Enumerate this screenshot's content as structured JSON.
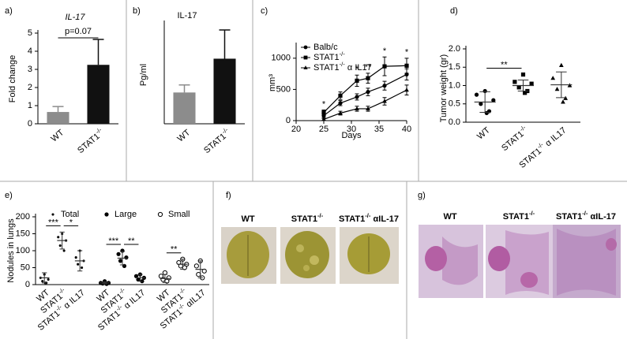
{
  "chart_data": [
    {
      "panel_label": "a)",
      "type": "bar",
      "title": "IL-17",
      "title_style": "italic",
      "y_label": "Fold change",
      "categories": [
        "WT",
        "STAT1-/-"
      ],
      "values": [
        0.65,
        3.25
      ],
      "errors": [
        0.3,
        1.4
      ],
      "colors": [
        "#8c8c8c",
        "#111111"
      ],
      "ylim": [
        0,
        5
      ],
      "yticks": [
        0,
        1,
        2,
        3,
        4,
        5
      ],
      "annotation": "p=0.07"
    },
    {
      "panel_label": "b)",
      "type": "bar",
      "title": "IL-17",
      "title_style": "normal",
      "y_label": "Pg/ml",
      "categories": [
        "WT",
        "STAT1-/-"
      ],
      "values": [
        2500,
        5200
      ],
      "errors": [
        600,
        2300
      ],
      "colors": [
        "#8c8c8c",
        "#111111"
      ],
      "ylim": [
        0,
        8000
      ]
    },
    {
      "panel_label": "c)",
      "type": "line",
      "y_label": "mm³",
      "x_label": "Days",
      "x": [
        25,
        28,
        31,
        33,
        36,
        40
      ],
      "xlim": [
        20,
        40
      ],
      "xticks": [
        20,
        25,
        30,
        35,
        40
      ],
      "ylim": [
        0,
        1200
      ],
      "yticks": [
        0,
        500,
        1000
      ],
      "series": [
        {
          "name": "Balb/c",
          "marker": "circle",
          "color": "#000000",
          "values": [
            80,
            280,
            380,
            460,
            560,
            740
          ],
          "errors": [
            30,
            40,
            50,
            60,
            70,
            90
          ]
        },
        {
          "name": "STAT1-/-",
          "marker": "square",
          "color": "#000000",
          "values": [
            130,
            400,
            640,
            680,
            870,
            880
          ],
          "errors": [
            40,
            60,
            90,
            80,
            150,
            120
          ]
        },
        {
          "name": "STAT1-/- α IL17",
          "marker": "triangle",
          "color": "#000000",
          "values": [
            20,
            120,
            190,
            190,
            310,
            490
          ],
          "errors": [
            15,
            30,
            40,
            40,
            60,
            80
          ]
        }
      ],
      "significance": [
        {
          "day": 25,
          "label": "*"
        },
        {
          "day": 31,
          "label": "*"
        },
        {
          "day": 33,
          "label": "**"
        },
        {
          "day": 36,
          "label": "*"
        },
        {
          "day": 40,
          "label": "*"
        }
      ]
    },
    {
      "panel_label": "d)",
      "type": "dot",
      "y_label": "Tumor weight (gr)",
      "categories": [
        "WT",
        "STAT1-/-",
        "STAT1-/- α IL17"
      ],
      "markers": [
        "circle",
        "square",
        "triangle"
      ],
      "points": [
        [
          0.85,
          0.75,
          0.6,
          0.5,
          0.3,
          0.25
        ],
        [
          1.3,
          1.1,
          1.05,
          0.95,
          0.85,
          0.8
        ],
        [
          1.55,
          1.2,
          1.0,
          0.9,
          0.65,
          0.55
        ]
      ],
      "means": [
        0.55,
        1.0,
        1.02
      ],
      "sds": [
        0.28,
        0.15,
        0.35
      ],
      "ylim": [
        0,
        2
      ],
      "yticks": [
        {
          "value": 0,
          "label": "0.0"
        },
        0.5,
        {
          "value": 1,
          "label": "1.0"
        },
        1.5,
        {
          "value": 2,
          "label": "2.0"
        }
      ],
      "significance": [
        {
          "label": "**",
          "between": [
            "WT",
            "STAT1-/-"
          ]
        }
      ]
    },
    {
      "panel_label": "e)",
      "type": "dot",
      "y_label": "Nodules in lungs",
      "ylim": [
        0,
        200
      ],
      "yticks": [
        0,
        50,
        100,
        150,
        200
      ],
      "series": [
        {
          "name": "Total",
          "marker": "small",
          "categories": [
            "WT",
            "STAT1-/-",
            "STAT1-/- α IL17"
          ],
          "points": [
            [
              30,
              20,
              15,
              10,
              5,
              5
            ],
            [
              150,
              140,
              130,
              115,
              100
            ],
            [
              100,
              80,
              70,
              60,
              50
            ]
          ],
          "means": [
            20,
            130,
            70
          ],
          "sds": [
            15,
            25,
            30
          ],
          "significance": [
            {
              "label": "***",
              "between": [
                "WT",
                "STAT1-/-"
              ]
            },
            {
              "label": "*",
              "between": [
                "STAT1-/-",
                "STAT1-/- α IL17"
              ]
            }
          ]
        },
        {
          "name": "Large",
          "marker": "circle",
          "categories": [
            "WT",
            "STAT1-/-",
            "STAT1-/- α IL17"
          ],
          "points": [
            [
              10,
              5,
              5,
              3,
              2
            ],
            [
              100,
              90,
              80,
              70,
              55
            ],
            [
              30,
              25,
              20,
              15,
              10
            ]
          ],
          "means": [
            5,
            78,
            20
          ],
          "sds": [
            3,
            20,
            10
          ],
          "significance": [
            {
              "label": "***",
              "between": [
                "WT",
                "STAT1-/-"
              ]
            },
            {
              "label": "**",
              "between": [
                "STAT1-/-",
                "STAT1-/- α IL17"
              ]
            }
          ]
        },
        {
          "name": "Small",
          "marker": "open",
          "categories": [
            "WT",
            "STAT1-/-",
            "STAT1-/- αIL17"
          ],
          "points": [
            [
              35,
              25,
              20,
              15,
              10
            ],
            [
              75,
              65,
              60,
              55,
              50
            ],
            [
              70,
              55,
              40,
              30,
              20
            ]
          ],
          "means": [
            18,
            60,
            45
          ],
          "sds": [
            12,
            15,
            25
          ],
          "significance": [
            {
              "label": "**",
              "between": [
                "WT",
                "STAT1-/-"
              ]
            }
          ]
        }
      ]
    }
  ],
  "photo_panels": [
    {
      "panel_label": "f)",
      "captions": [
        "WT",
        "STAT1-/-",
        "STAT1-/- αIL-17"
      ]
    },
    {
      "panel_label": "g)",
      "captions": [
        "WT",
        "STAT1-/-",
        "STAT1-/- αIL-17"
      ]
    }
  ]
}
